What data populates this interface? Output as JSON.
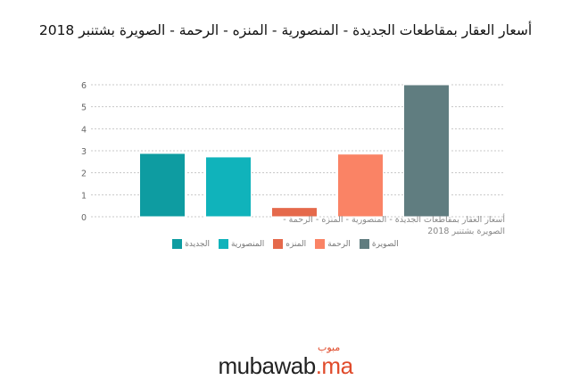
{
  "chart_data": {
    "type": "bar",
    "title": "أسعار العقار بمقاطعات الجديدة - المنصورية - المنزه - الرحمة - الصويرة بشتنبر 2018",
    "xlabel": "أسعار العقار بمقاطعات الجديدة - المنصورية - المنزه - الرحمة - الصويرة بشتنبر 2018",
    "ylabel": "",
    "ylim": [
      0,
      6
    ],
    "yticks": [
      "0",
      "1",
      "2",
      "3",
      "4",
      "5",
      "6"
    ],
    "grid": true,
    "legend_position": "bottom",
    "series": [
      {
        "name": "الجديدة",
        "values": [
          2.88
        ],
        "color": "#0e9ca1"
      },
      {
        "name": "المنصورية",
        "values": [
          2.72
        ],
        "color": "#10b3bb"
      },
      {
        "name": "المنزه",
        "values": [
          0.42
        ],
        "color": "#e5694b"
      },
      {
        "name": "الرحمة",
        "values": [
          2.85
        ],
        "color": "#fa8365"
      },
      {
        "name": "الصويرة",
        "values": [
          6.0
        ],
        "color": "#607d80"
      }
    ]
  },
  "logo": {
    "text": "mubawab",
    "suffix": ".ma",
    "arabic": "مبوب"
  }
}
